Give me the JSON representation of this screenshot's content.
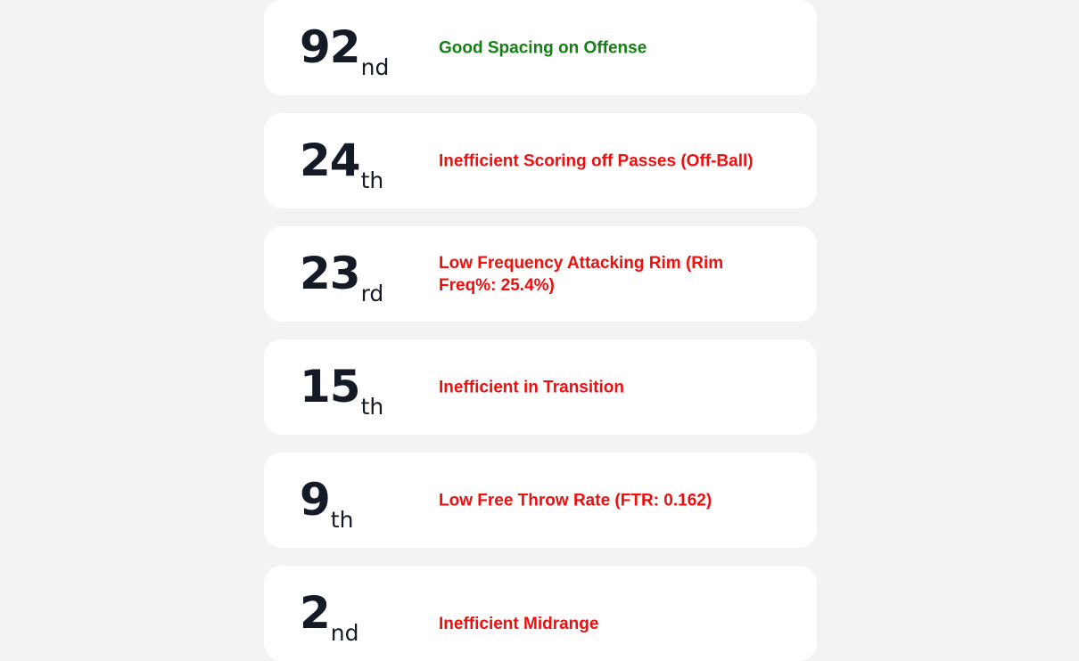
{
  "colors": {
    "page_background": "#f2f3f5",
    "card_background": "#ffffff",
    "rank_text": "#141a26",
    "good": "#128012",
    "bad": "#ee0f0f"
  },
  "items": [
    {
      "rank": "92",
      "suffix": "nd",
      "label": "Good Spacing on Offense",
      "status": "good"
    },
    {
      "rank": "24",
      "suffix": "th",
      "label": "Inefficient Scoring off Passes (Off-Ball)",
      "status": "bad"
    },
    {
      "rank": "23",
      "suffix": "rd",
      "label": "Low Frequency Attacking Rim (Rim Freq%: 25.4%)",
      "status": "bad"
    },
    {
      "rank": "15",
      "suffix": "th",
      "label": "Inefficient in Transition",
      "status": "bad"
    },
    {
      "rank": "9",
      "suffix": "th",
      "label": "Low Free Throw Rate (FTR: 0.162)",
      "status": "bad"
    },
    {
      "rank": "2",
      "suffix": "nd",
      "label": "Inefficient Midrange",
      "status": "bad"
    }
  ]
}
